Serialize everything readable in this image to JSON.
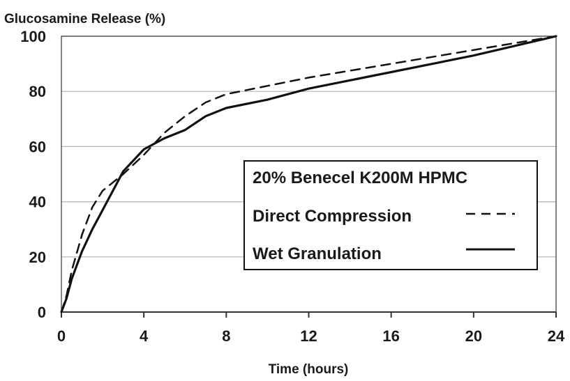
{
  "chart_data": {
    "type": "line",
    "ylabel": "Glucosamine Release (%)",
    "xlabel": "Time (hours)",
    "xlim": [
      0,
      24
    ],
    "ylim": [
      0,
      100
    ],
    "x_ticks": [
      0,
      4,
      8,
      12,
      16,
      20,
      24
    ],
    "y_ticks": [
      0,
      20,
      40,
      60,
      80,
      100
    ],
    "grid": "horizontal",
    "legend_position": "center-right",
    "legend_title": "20% Benecel  K200M HPMC",
    "series": [
      {
        "name": "Direct Compression",
        "style": "dashed",
        "x": [
          0,
          0.25,
          0.5,
          1,
          1.5,
          2,
          3,
          4,
          5,
          6,
          7,
          8,
          10,
          12,
          16,
          20,
          24
        ],
        "y": [
          0,
          6,
          15,
          28,
          38,
          44,
          50,
          57,
          65,
          71,
          76,
          79,
          82,
          85,
          90,
          95,
          100
        ]
      },
      {
        "name": "Wet Granulation",
        "style": "solid",
        "x": [
          0,
          0.25,
          0.5,
          1,
          1.5,
          2,
          2.5,
          3,
          3.5,
          4,
          5,
          6,
          7,
          8,
          10,
          12,
          16,
          20,
          24
        ],
        "y": [
          0,
          5,
          12,
          22,
          30,
          37,
          44,
          51,
          55,
          59,
          63,
          66,
          71,
          74,
          77,
          81,
          87,
          93,
          100
        ]
      }
    ],
    "colors": {
      "line": "#111111",
      "grid": "#b3b3b3",
      "axis": "#333333"
    }
  }
}
